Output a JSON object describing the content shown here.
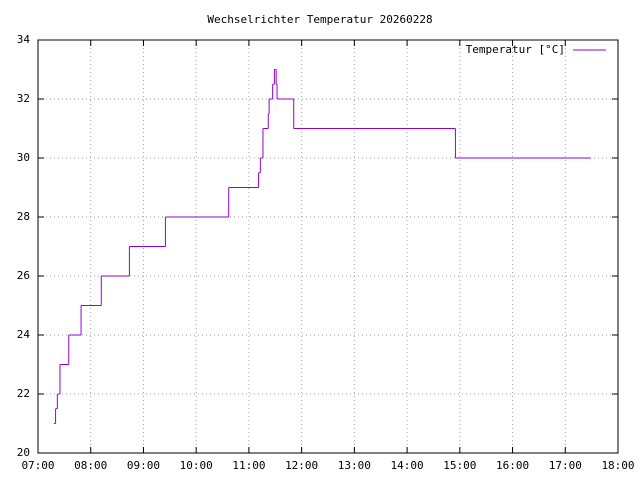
{
  "chart_data": {
    "type": "line",
    "step": true,
    "title": "Wechselrichter Temperatur 20260228",
    "x": [
      "07:18",
      "07:20",
      "07:22",
      "07:25",
      "07:35",
      "07:49",
      "08:12",
      "08:44",
      "09:25",
      "10:37",
      "11:11",
      "11:13",
      "11:16",
      "11:22",
      "11:23",
      "11:27",
      "11:29",
      "11:31",
      "11:32",
      "11:51",
      "14:55",
      "17:29"
    ],
    "series": [
      {
        "name": "Temperatur [°C]",
        "color": "#9400d3",
        "values": [
          21,
          21.5,
          22,
          23,
          24,
          25,
          26,
          27,
          28,
          29,
          29.5,
          30,
          31,
          31.5,
          32,
          32.5,
          33,
          32.5,
          32,
          31,
          30,
          30
        ]
      }
    ],
    "xlim": [
      "07:00",
      "18:00"
    ],
    "xticks": [
      "07:00",
      "08:00",
      "09:00",
      "10:00",
      "11:00",
      "12:00",
      "13:00",
      "14:00",
      "15:00",
      "16:00",
      "17:00",
      "18:00"
    ],
    "ylim": [
      20,
      34
    ],
    "yticks": [
      20,
      22,
      24,
      26,
      28,
      30,
      32,
      34
    ],
    "grid": true,
    "legend": "top-right"
  }
}
